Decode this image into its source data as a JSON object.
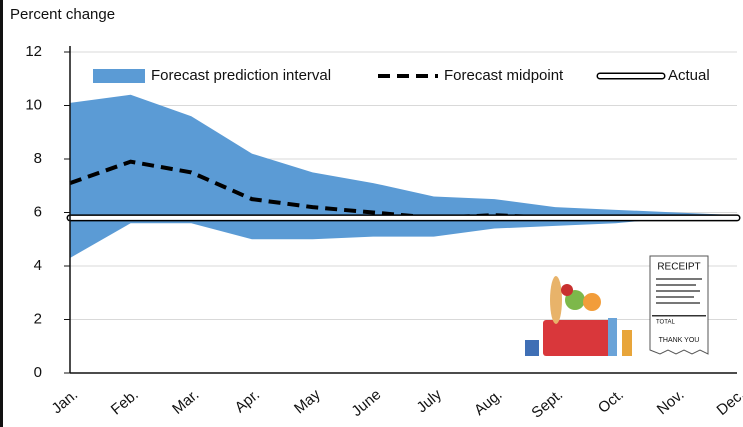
{
  "chart_data": {
    "type": "line",
    "title": "Percent change",
    "categories": [
      "Jan.",
      "Feb.",
      "Mar.",
      "Apr.",
      "May",
      "June",
      "July",
      "Aug.",
      "Sept.",
      "Oct.",
      "Nov.",
      "Dec."
    ],
    "series": [
      {
        "name": "Forecast prediction interval",
        "style": "band",
        "color": "#5b9bd5",
        "lower": [
          4.3,
          5.6,
          5.6,
          5.0,
          5.0,
          5.1,
          5.1,
          5.4,
          5.5,
          5.6,
          5.8,
          5.8
        ],
        "upper": [
          10.1,
          10.4,
          9.6,
          8.2,
          7.5,
          7.1,
          6.6,
          6.5,
          6.2,
          6.1,
          6.0,
          5.9
        ]
      },
      {
        "name": "Forecast midpoint",
        "style": "dashed",
        "color": "#000000",
        "values": [
          7.1,
          7.9,
          7.5,
          6.5,
          6.2,
          6.0,
          5.8,
          5.9,
          5.8,
          5.8,
          5.8,
          5.8
        ]
      },
      {
        "name": "Actual",
        "style": "outlined",
        "color": "#ffffff",
        "values": [
          5.8,
          5.8,
          5.8,
          5.8,
          5.8,
          5.8,
          5.8,
          5.8,
          5.8,
          5.8,
          5.8,
          5.8
        ]
      }
    ],
    "ylim": [
      0,
      12
    ],
    "yticks": [
      0,
      2,
      4,
      6,
      8,
      10,
      12
    ],
    "grid": true,
    "legend": "top",
    "annotations": [
      "RECEIPT",
      "TOTAL",
      "THANK YOU"
    ]
  }
}
